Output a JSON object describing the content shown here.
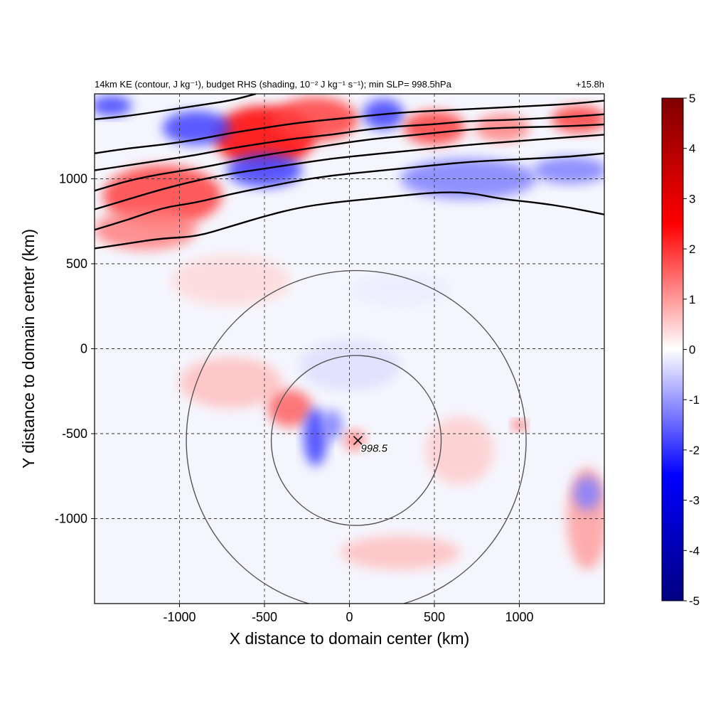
{
  "chart_data": {
    "type": "heatmap",
    "title": "14km KE (contour, J kg⁻¹), budget RHS (shading, 10⁻² J kg⁻¹ s⁻¹); min SLP= 998.5hPa",
    "time_label": "+15.8h",
    "xlabel": "X distance to domain center (km)",
    "ylabel": "Y distance to domain center (km)",
    "xlim": [
      -1500,
      1500
    ],
    "ylim": [
      -1500,
      1500
    ],
    "xticks": [
      -1000,
      -500,
      0,
      500,
      1000
    ],
    "yticks": [
      -1000,
      -500,
      0,
      500,
      1000
    ],
    "xtick_labels": [
      "-1000",
      "-500",
      "0",
      "500",
      "1000"
    ],
    "ytick_labels": [
      "-1000",
      "-500",
      "0",
      "500",
      "1000"
    ],
    "grid": true,
    "grid_style": "dashed",
    "colorbar": {
      "min": -5,
      "max": 5,
      "ticks": [
        5,
        4,
        3,
        2,
        1,
        0,
        -1,
        -2,
        -3,
        -4,
        -5
      ],
      "tick_labels": [
        "5",
        "4",
        "3",
        "2",
        "1",
        "0",
        "-1",
        "-2",
        "-3",
        "-4",
        "-5"
      ],
      "colormap": "blue-white-red",
      "colors": [
        "#00007f",
        "#0000ff",
        "#ffffff",
        "#ff0000",
        "#7f0000"
      ]
    },
    "storm_center": {
      "x": 50,
      "y": -540,
      "label": "998.5"
    },
    "range_rings": [
      {
        "center_x": 40,
        "center_y": -540,
        "radius": 500
      },
      {
        "center_x": 40,
        "center_y": -540,
        "radius": 1000
      }
    ],
    "ke_contours": [
      {
        "points": [
          [
            -1500,
            590
          ],
          [
            -1300,
            620
          ],
          [
            -1100,
            650
          ],
          [
            -900,
            660
          ],
          [
            -700,
            720
          ],
          [
            -500,
            780
          ],
          [
            -300,
            830
          ],
          [
            -100,
            860
          ],
          [
            100,
            880
          ],
          [
            300,
            900
          ],
          [
            500,
            920
          ],
          [
            700,
            920
          ],
          [
            900,
            880
          ],
          [
            1100,
            860
          ],
          [
            1300,
            830
          ],
          [
            1500,
            790
          ]
        ]
      },
      {
        "points": [
          [
            -1500,
            700
          ],
          [
            -1300,
            760
          ],
          [
            -1100,
            830
          ],
          [
            -900,
            860
          ],
          [
            -700,
            910
          ],
          [
            -500,
            950
          ],
          [
            -300,
            990
          ],
          [
            -100,
            1020
          ],
          [
            100,
            1040
          ],
          [
            300,
            1060
          ],
          [
            500,
            1080
          ],
          [
            700,
            1100
          ],
          [
            900,
            1110
          ],
          [
            1100,
            1120
          ],
          [
            1300,
            1130
          ],
          [
            1500,
            1150
          ]
        ]
      },
      {
        "points": [
          [
            -1500,
            820
          ],
          [
            -1300,
            880
          ],
          [
            -1100,
            940
          ],
          [
            -900,
            990
          ],
          [
            -700,
            1030
          ],
          [
            -500,
            1060
          ],
          [
            -300,
            1090
          ],
          [
            -100,
            1120
          ],
          [
            100,
            1140
          ],
          [
            300,
            1160
          ],
          [
            500,
            1180
          ],
          [
            700,
            1200
          ],
          [
            900,
            1215
          ],
          [
            1100,
            1230
          ],
          [
            1300,
            1245
          ],
          [
            1500,
            1260
          ]
        ]
      },
      {
        "points": [
          [
            -1500,
            930
          ],
          [
            -1300,
            990
          ],
          [
            -1100,
            1030
          ],
          [
            -900,
            1060
          ],
          [
            -700,
            1100
          ],
          [
            -500,
            1140
          ],
          [
            -300,
            1170
          ],
          [
            -100,
            1200
          ],
          [
            100,
            1230
          ],
          [
            300,
            1250
          ],
          [
            500,
            1270
          ],
          [
            700,
            1290
          ],
          [
            900,
            1300
          ],
          [
            1100,
            1305
          ],
          [
            1300,
            1310
          ],
          [
            1500,
            1320
          ]
        ]
      },
      {
        "points": [
          [
            -1500,
            1050
          ],
          [
            -1300,
            1080
          ],
          [
            -1100,
            1110
          ],
          [
            -900,
            1140
          ],
          [
            -700,
            1180
          ],
          [
            -500,
            1210
          ],
          [
            -300,
            1240
          ],
          [
            -100,
            1260
          ],
          [
            100,
            1290
          ],
          [
            300,
            1310
          ],
          [
            500,
            1320
          ],
          [
            700,
            1340
          ],
          [
            900,
            1345
          ],
          [
            1100,
            1355
          ],
          [
            1300,
            1365
          ],
          [
            1500,
            1380
          ]
        ]
      },
      {
        "points": [
          [
            -1500,
            1150
          ],
          [
            -1300,
            1180
          ],
          [
            -1100,
            1200
          ],
          [
            -900,
            1230
          ],
          [
            -700,
            1270
          ],
          [
            -500,
            1300
          ],
          [
            -300,
            1330
          ],
          [
            -100,
            1350
          ],
          [
            100,
            1370
          ],
          [
            300,
            1390
          ],
          [
            500,
            1400
          ],
          [
            700,
            1410
          ],
          [
            900,
            1420
          ],
          [
            1100,
            1430
          ],
          [
            1300,
            1440
          ],
          [
            1500,
            1460
          ]
        ]
      },
      {
        "points": [
          [
            -1500,
            1350
          ],
          [
            -1300,
            1370
          ],
          [
            -1100,
            1400
          ],
          [
            -900,
            1430
          ],
          [
            -700,
            1460
          ],
          [
            -550,
            1500
          ]
        ]
      }
    ],
    "shading_regions": [
      {
        "x": -1100,
        "y": 900,
        "rx": 350,
        "ry": 180,
        "value": 3
      },
      {
        "x": -500,
        "y": 1250,
        "rx": 300,
        "ry": 180,
        "value": 4
      },
      {
        "x": -200,
        "y": 1350,
        "rx": 250,
        "ry": 130,
        "value": 3
      },
      {
        "x": -900,
        "y": 1300,
        "rx": 200,
        "ry": 100,
        "value": -3
      },
      {
        "x": -1400,
        "y": 1430,
        "rx": 120,
        "ry": 60,
        "value": -3
      },
      {
        "x": 200,
        "y": 1380,
        "rx": 120,
        "ry": 90,
        "value": -3
      },
      {
        "x": 500,
        "y": 1300,
        "rx": 180,
        "ry": 100,
        "value": 3
      },
      {
        "x": 900,
        "y": 1300,
        "rx": 160,
        "ry": 80,
        "value": 2
      },
      {
        "x": 1350,
        "y": 1350,
        "rx": 160,
        "ry": 80,
        "value": 3
      },
      {
        "x": 700,
        "y": 1000,
        "rx": 400,
        "ry": 120,
        "value": -2
      },
      {
        "x": 1300,
        "y": 1050,
        "rx": 220,
        "ry": 80,
        "value": -2
      },
      {
        "x": -1200,
        "y": 700,
        "rx": 300,
        "ry": 120,
        "value": 2
      },
      {
        "x": -500,
        "y": 1050,
        "rx": 220,
        "ry": 100,
        "value": -3
      },
      {
        "x": -700,
        "y": 400,
        "rx": 350,
        "ry": 150,
        "value": 0.6
      },
      {
        "x": -700,
        "y": -200,
        "rx": 300,
        "ry": 150,
        "value": 1
      },
      {
        "x": -350,
        "y": -350,
        "rx": 130,
        "ry": 110,
        "value": 2.5
      },
      {
        "x": -200,
        "y": -520,
        "rx": 70,
        "ry": 170,
        "value": -3
      },
      {
        "x": -100,
        "y": -450,
        "rx": 60,
        "ry": 90,
        "value": -2
      },
      {
        "x": 30,
        "y": -540,
        "rx": 60,
        "ry": 60,
        "value": 2
      },
      {
        "x": 650,
        "y": -600,
        "rx": 200,
        "ry": 200,
        "value": 0.8
      },
      {
        "x": 1400,
        "y": -1000,
        "rx": 120,
        "ry": 300,
        "value": 1.5
      },
      {
        "x": 1400,
        "y": -850,
        "rx": 80,
        "ry": 100,
        "value": -2
      },
      {
        "x": 1000,
        "y": -450,
        "rx": 40,
        "ry": 30,
        "value": 3
      },
      {
        "x": 300,
        "y": -1200,
        "rx": 350,
        "ry": 100,
        "value": 1
      },
      {
        "x": 0,
        "y": -100,
        "rx": 300,
        "ry": 150,
        "value": -0.5
      },
      {
        "x": 300,
        "y": 350,
        "rx": 300,
        "ry": 100,
        "value": -0.3
      }
    ]
  }
}
